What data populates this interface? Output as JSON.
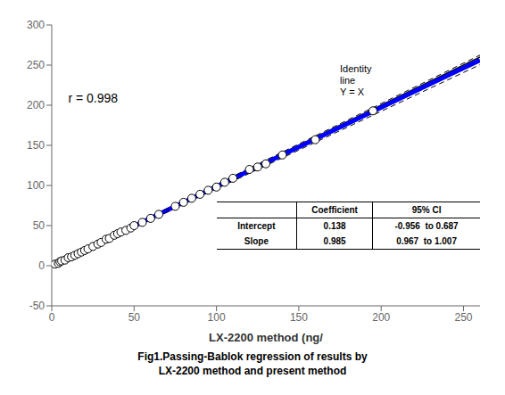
{
  "chart_data": {
    "type": "scatter",
    "x_label": "LX-2200 method (ng/",
    "caption": "Fig1.Passing-Bablok regression of results by\nLX-2200 method and present method",
    "xlim": [
      0,
      260
    ],
    "ylim": [
      -50,
      300
    ],
    "xticks": [
      0,
      50,
      100,
      150,
      200,
      250
    ],
    "yticks": [
      -50,
      0,
      50,
      100,
      150,
      200,
      250,
      300
    ],
    "grid": false,
    "series": [
      {
        "type": "line",
        "color": "#000000",
        "line_style": "solid",
        "x": [
          0,
          260
        ],
        "values": [
          0,
          260
        ]
      },
      {
        "type": "line",
        "color": "#0000FF",
        "line_style": "solid",
        "x": [
          0,
          260
        ],
        "values": [
          0.138,
          256.238
        ]
      },
      {
        "type": "line",
        "color": "#000000",
        "line_style": "dashed",
        "x": [
          0,
          260
        ],
        "values": [
          0.687,
          262.507
        ]
      },
      {
        "type": "line",
        "color": "#000000",
        "line_style": "dashed",
        "x": [
          0,
          260
        ],
        "values": [
          -0.956,
          250.464
        ]
      },
      {
        "type": "scatter",
        "color": "#000000",
        "marker": "open_circle",
        "x": [
          2,
          4,
          5,
          6,
          8,
          10,
          12,
          14,
          16,
          18,
          20,
          22,
          25,
          28,
          30,
          33,
          35,
          38,
          40,
          42,
          45,
          48,
          50,
          55,
          60,
          65,
          75,
          80,
          85,
          90,
          95,
          100,
          105,
          110,
          120,
          125,
          130,
          140,
          160,
          195
        ],
        "values": [
          2,
          3,
          5,
          6,
          7,
          10,
          11,
          13,
          15,
          17,
          19,
          21,
          24,
          27,
          29,
          33,
          34,
          38,
          40,
          42,
          44,
          47,
          50,
          54,
          59,
          64,
          74,
          79,
          84,
          89,
          94,
          98,
          104,
          109,
          120,
          123,
          127,
          138,
          157,
          193
        ]
      }
    ],
    "annotations": [
      "r = 0.998",
      "Identity\nline\nY = X"
    ],
    "table": {
      "header": [
        "Coefficient",
        "95% CI"
      ],
      "rows": [
        {
          "label": "Intercept",
          "values": [
            "0.138",
            "-0.956  to 0.687"
          ]
        },
        {
          "label": "Slope",
          "values": [
            "0.985",
            "0.967  to 1.007"
          ]
        }
      ]
    }
  }
}
